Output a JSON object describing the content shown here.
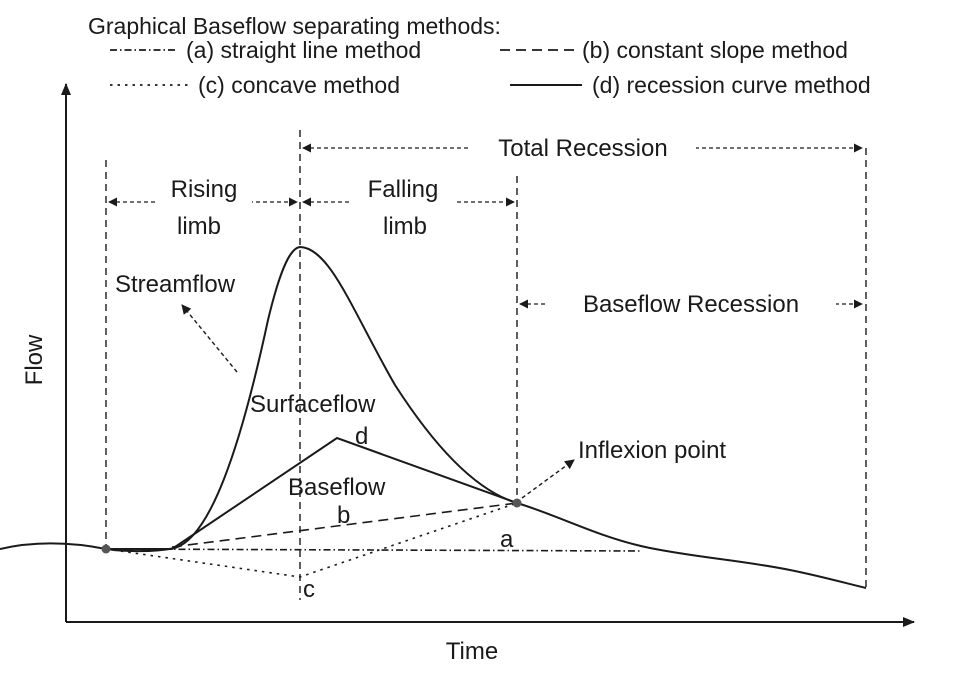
{
  "legend": {
    "heading": "Graphical Baseflow separating methods:",
    "items": [
      {
        "key": "a",
        "label": "(a) straight line method",
        "style": "dash-dot"
      },
      {
        "key": "b",
        "label": "(b) constant slope method",
        "style": "dashed"
      },
      {
        "key": "c",
        "label": "(c) concave method",
        "style": "dotted"
      },
      {
        "key": "d",
        "label": "(d) recession curve method",
        "style": "solid"
      }
    ]
  },
  "axes": {
    "x_label": "Time",
    "y_label": "Flow"
  },
  "spans": {
    "total_recession": "Total Recession",
    "rising_limb": [
      "Rising",
      "limb"
    ],
    "falling_limb": [
      "Falling",
      "limb"
    ],
    "baseflow_recession": "Baseflow Recession"
  },
  "labels": {
    "streamflow": "Streamflow",
    "surfaceflow": "Surfaceflow",
    "baseflow": "Baseflow",
    "inflexion_point": "Inflexion point",
    "a": "a",
    "b": "b",
    "c": "c",
    "d": "d"
  },
  "colors": {
    "ink": "#1a1a1a",
    "point": "#555555"
  }
}
